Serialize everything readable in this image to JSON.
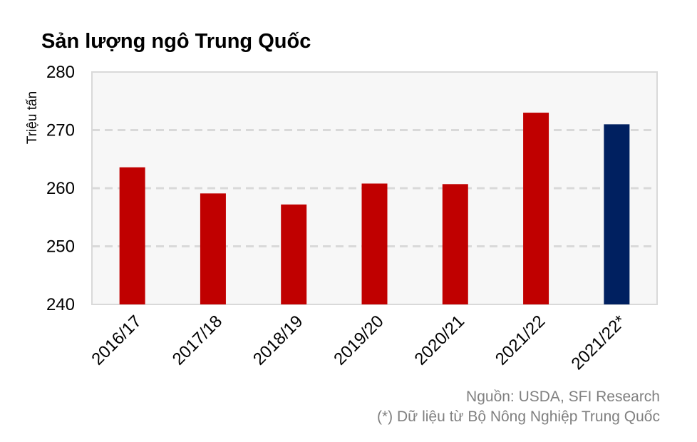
{
  "chart_data": {
    "type": "bar",
    "title": "Sản lượng ngô Trung Quốc",
    "ylabel": "Triệu tấn",
    "xlabel": "",
    "categories": [
      "2016/17",
      "2017/18",
      "2018/19",
      "2019/20",
      "2020/21",
      "2021/22",
      "2021/22*"
    ],
    "values": [
      263.6,
      259.1,
      257.2,
      260.8,
      260.7,
      273.0,
      271.0
    ],
    "ylim": [
      240,
      280
    ],
    "yticks": [
      240,
      250,
      260,
      270,
      280
    ],
    "bar_colors": [
      "#c00000",
      "#c00000",
      "#c00000",
      "#c00000",
      "#c00000",
      "#c00000",
      "#002060"
    ],
    "grid": true,
    "legend": "none"
  },
  "notes": {
    "source": "Nguồn: USDA, SFI Research",
    "asterisk": "(*) Dữ liệu từ Bộ Nông Nghiệp Trung Quốc"
  }
}
